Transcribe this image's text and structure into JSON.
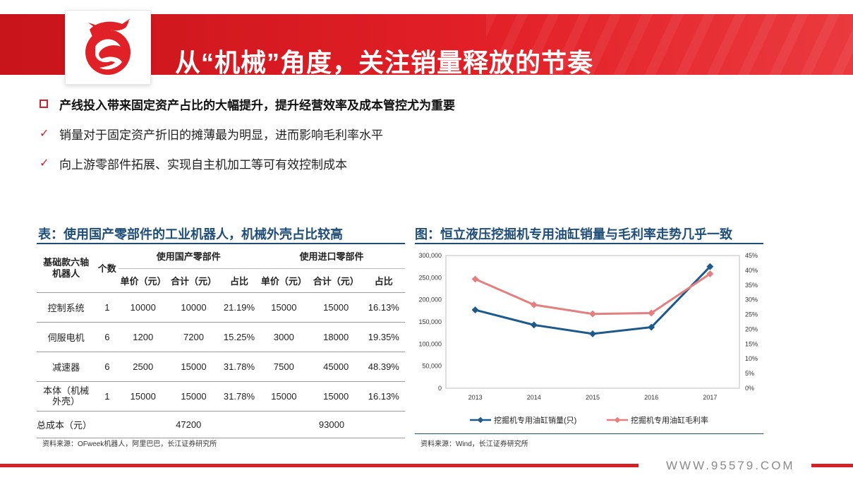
{
  "header": {
    "title": "从“机械”角度，关注销量释放的节奏",
    "brand_color": "#d42027"
  },
  "bullets": {
    "main": "产线投入带来固定资产占比的大幅提升，提升经营效率及成本管控尤为重要",
    "sub1": "销量对于固定资产折旧的摊薄最为明显，进而影响毛利率水平",
    "sub2": "向上游零部件拓展、实现自主机加工等可有效控制成本"
  },
  "table_section": {
    "title": "表：使用国产零部件的工业机器人，机械外壳占比较高",
    "col_robot": "基础款六轴机器人",
    "col_count": "个数",
    "group_domestic": "使用国产零部件",
    "group_import": "使用进口零部件",
    "sub_unit": "单价（元）",
    "sub_total": "合计（元）",
    "sub_ratio": "占比",
    "rows": [
      {
        "name": "控制系统",
        "count": "1",
        "d_unit": "10000",
        "d_total": "10000",
        "d_ratio": "21.19%",
        "i_unit": "15000",
        "i_total": "15000",
        "i_ratio": "16.13%"
      },
      {
        "name": "伺服电机",
        "count": "6",
        "d_unit": "1200",
        "d_total": "7200",
        "d_ratio": "15.25%",
        "i_unit": "3000",
        "i_total": "18000",
        "i_ratio": "19.35%"
      },
      {
        "name": "减速器",
        "count": "6",
        "d_unit": "2500",
        "d_total": "15000",
        "d_ratio": "31.78%",
        "i_unit": "7500",
        "i_total": "45000",
        "i_ratio": "48.39%"
      },
      {
        "name": "本体（机械外壳）",
        "count": "1",
        "d_unit": "15000",
        "d_total": "15000",
        "d_ratio": "31.78%",
        "i_unit": "15000",
        "i_total": "15000",
        "i_ratio": "16.13%"
      }
    ],
    "total_label": "总成本（元）",
    "total_domestic": "47200",
    "total_import": "93000",
    "source": "资料来源：OFweek机器人，阿里巴巴，长江证券研究所"
  },
  "chart_section": {
    "title": "图：恒立液压挖掘机专用油缸销量与毛利率走势几乎一致",
    "source": "资料来源：Wind，长江证券研究所"
  },
  "chart_data": {
    "type": "line",
    "title": "图：恒立液压挖掘机专用油缸销量与毛利率走势几乎一致",
    "categories": [
      "2013",
      "2014",
      "2015",
      "2016",
      "2017"
    ],
    "y_left": {
      "ylim": [
        0,
        300000
      ],
      "ticks": [
        "0",
        "50,000",
        "100,000",
        "150,000",
        "200,000",
        "250,000",
        "300,000"
      ]
    },
    "y_right": {
      "ylim": [
        0,
        45
      ],
      "ticks": [
        "0%",
        "5%",
        "10%",
        "15%",
        "20%",
        "25%",
        "30%",
        "35%",
        "40%",
        "45%"
      ]
    },
    "series": [
      {
        "name": "挖掘机专用油缸销量(只)",
        "axis": "left",
        "color": "#1c5a8c",
        "values": [
          177000,
          143000,
          123000,
          138000,
          275000
        ]
      },
      {
        "name": "挖掘机专用油缸毛利率",
        "axis": "right",
        "color": "#e47f7f",
        "values": [
          37,
          28.3,
          25.2,
          25.5,
          38.8
        ]
      }
    ],
    "grid": false,
    "legend": "bottom"
  },
  "footer": {
    "url": "WWW.95579.COM"
  }
}
